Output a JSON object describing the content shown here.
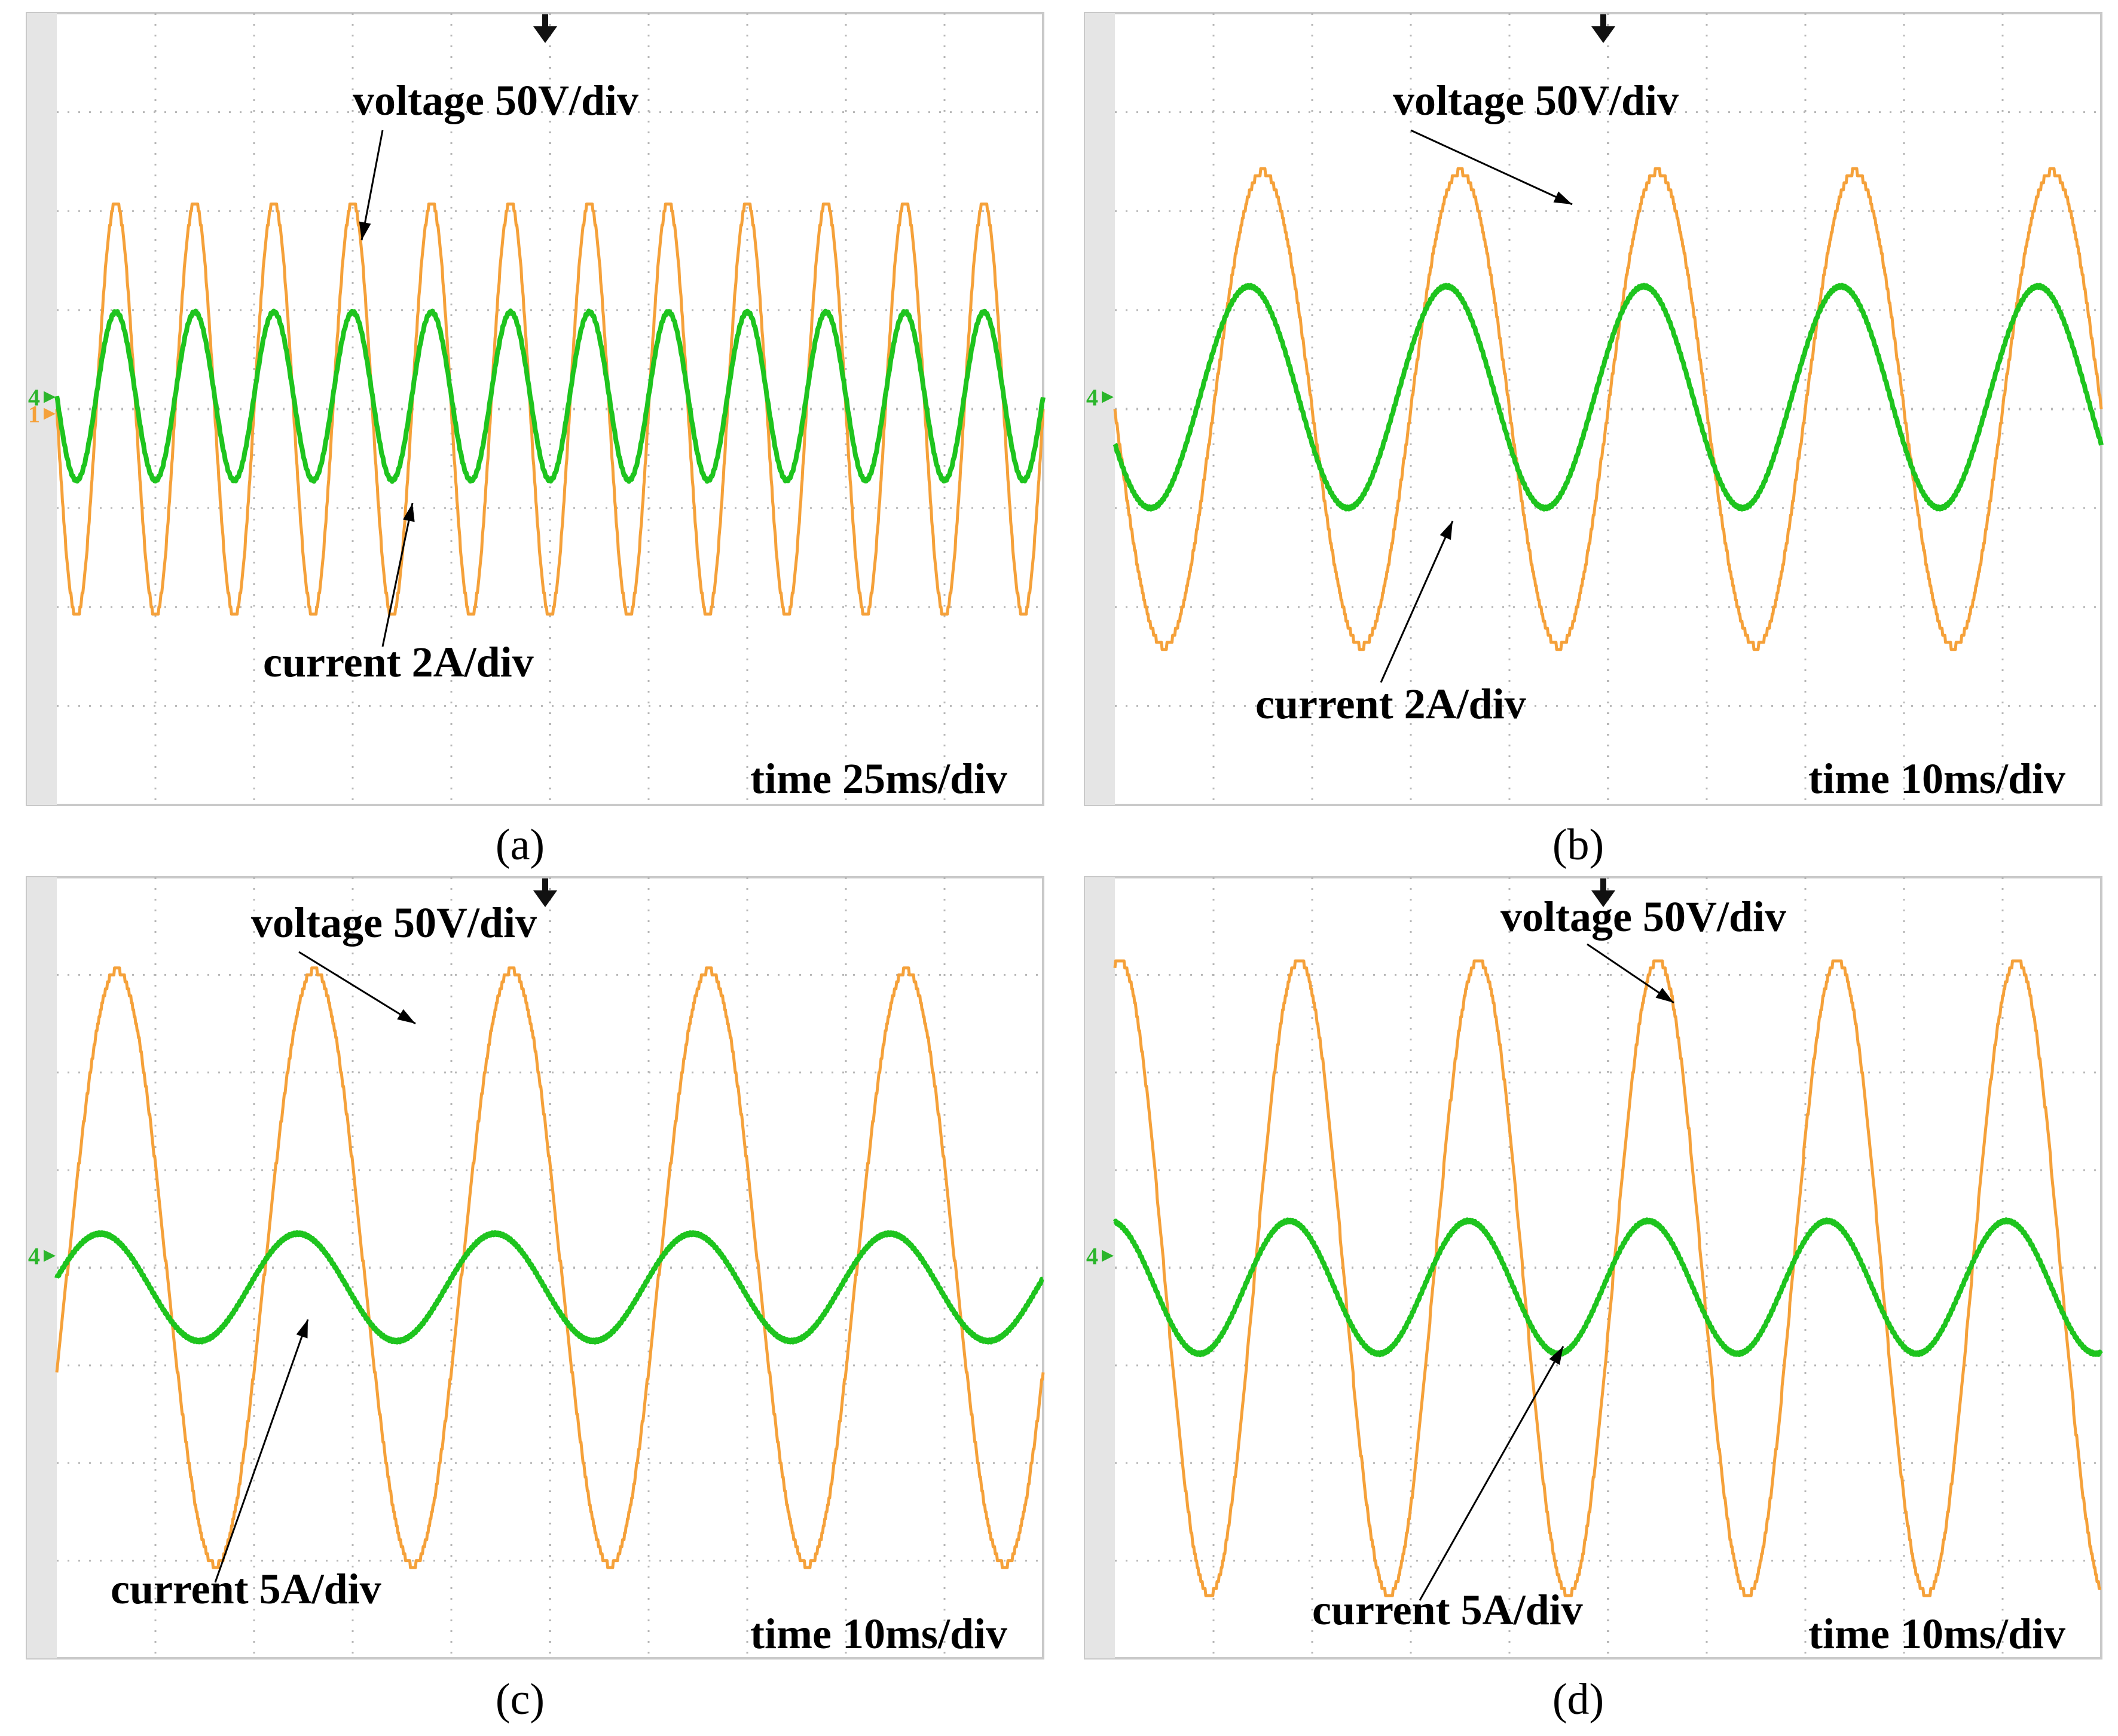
{
  "colors": {
    "voltage": "#f5a13a",
    "current": "#1ec41e",
    "marker": "#2bb52b",
    "grid": "#b7b7b7",
    "frame": "#c9c9c9",
    "left_strip": "#e5e5e5",
    "background": "#ffffff",
    "text": "#000000"
  },
  "icons": {
    "trigger": "trigger-arrow-icon",
    "channel_marker": "channel-marker-icon"
  },
  "chart_data": [
    {
      "type": "line",
      "panel_label": "(a)",
      "time_label": "time 25ms/div",
      "voltage_label": "voltage 50V/div",
      "current_label": "current 2A/div",
      "channel_markers": [
        "4",
        "1"
      ],
      "grid": true,
      "divisions": [
        10,
        8
      ],
      "series": [
        {
          "label": "voltage 50V/div",
          "waveform": "sine",
          "frequency_hz": 50,
          "amplitude_div": 2.1,
          "offset_div": 0,
          "phase_deg": 180
        },
        {
          "label": "current 2A/div",
          "waveform": "sine",
          "frequency_hz": 50,
          "amplitude_div": 0.85,
          "offset_div": 0.13,
          "phase_deg": 180
        }
      ]
    },
    {
      "type": "line",
      "panel_label": "(b)",
      "time_label": "time 10ms/div",
      "voltage_label": "voltage 50V/div",
      "current_label": "current 2A/div",
      "channel_markers": [
        "4"
      ],
      "grid": true,
      "divisions": [
        10,
        8
      ],
      "series": [
        {
          "label": "voltage 50V/div",
          "waveform": "sine",
          "frequency_hz": 50,
          "amplitude_div": 2.4,
          "offset_div": 0,
          "phase_deg": 180
        },
        {
          "label": "current 2A/div",
          "waveform": "sine",
          "frequency_hz": 50,
          "amplitude_div": 1.12,
          "offset_div": 0.12,
          "phase_deg": 205
        }
      ]
    },
    {
      "type": "line",
      "panel_label": "(c)",
      "time_label": "time 10ms/div",
      "voltage_label": "voltage 50V/div",
      "current_label": "current 5A/div",
      "channel_markers": [
        "4"
      ],
      "grid": true,
      "divisions": [
        10,
        8
      ],
      "series": [
        {
          "label": "voltage 50V/div",
          "waveform": "sine",
          "frequency_hz": 50,
          "amplitude_div": 3.05,
          "offset_div": 0,
          "phase_deg": 340
        },
        {
          "label": "current 5A/div",
          "waveform": "sine",
          "frequency_hz": 50,
          "amplitude_div": 0.55,
          "offset_div": -0.2,
          "phase_deg": 10
        }
      ]
    },
    {
      "type": "line",
      "panel_label": "(d)",
      "time_label": "time 10ms/div",
      "voltage_label": "voltage 50V/div",
      "current_label": "current 5A/div",
      "channel_markers": [
        "4"
      ],
      "grid": true,
      "divisions": [
        10,
        8
      ],
      "series": [
        {
          "label": "voltage 50V/div",
          "waveform": "sine",
          "frequency_hz": 55,
          "amplitude_div": 3.25,
          "offset_div": -0.1,
          "phase_deg": 80
        },
        {
          "label": "current 5A/div",
          "waveform": "sine",
          "frequency_hz": 55,
          "amplitude_div": 0.68,
          "offset_div": -0.2,
          "phase_deg": 100
        }
      ]
    }
  ]
}
